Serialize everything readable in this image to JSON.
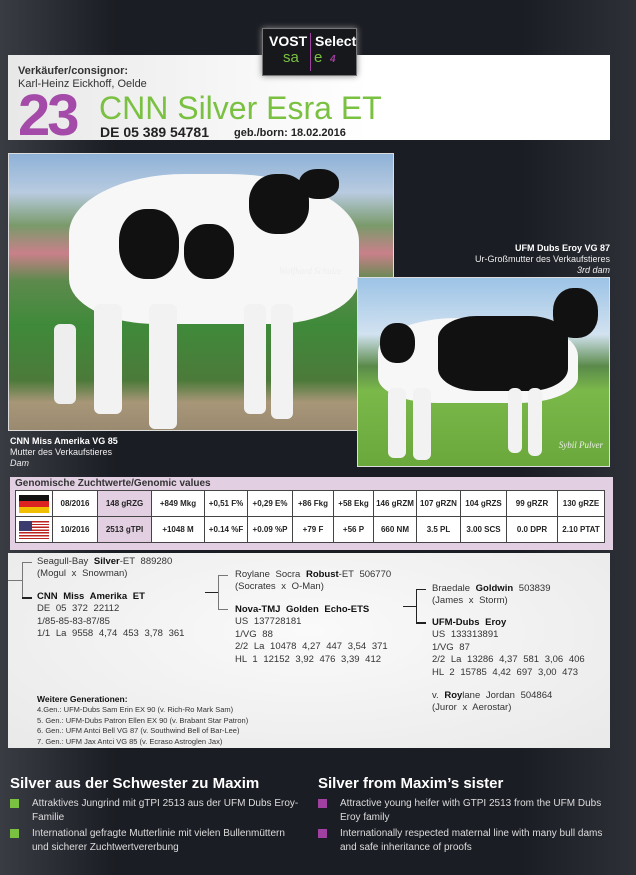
{
  "logo": {
    "line1a": "VOST",
    "line1b": "Select",
    "line2a": "sa",
    "line2b": "e",
    "line2c": "4"
  },
  "header": {
    "consignor_label": "Verkäufer/consignor:",
    "consignor": "Karl-Heinz Eickhoff, Oelde",
    "lot_number": "23",
    "animal_name": "CNN Silver Esra ET",
    "registration": "DE 05 389 54781",
    "born": "geb./born: 18.02.2016"
  },
  "photos": {
    "main_watermark": "Wolfhard Schulze",
    "second_watermark": "Sybil Pulver"
  },
  "captions": {
    "right": {
      "title": "UFM Dubs Eroy VG 87",
      "line1": "Ur-Großmutter des Verkaufstieres",
      "line2": "3rd dam"
    },
    "left": {
      "title": "CNN Miss Amerika VG 85",
      "line1": "Mutter des Verkaufstieres",
      "line2": "Dam"
    }
  },
  "genomic": {
    "title": "Genomische Zuchtwerte/Genomic values",
    "rows": [
      {
        "flag": "germany-flag",
        "cells": [
          "08/2016",
          "148 gRZG",
          "+849 Mkg",
          "+0,51 F%",
          "+0,29 E%",
          "+86 Fkg",
          "+58 Ekg",
          "146 gRZM",
          "107 gRZN",
          "104 gRZS",
          "99 gRZR",
          "130 gRZE"
        ]
      },
      {
        "flag": "usa-flag",
        "cells": [
          "10/2016",
          "2513 gTPI",
          "+1048 M",
          "+0.14 %F",
          "+0.09 %P",
          "+79 F",
          "+56 P",
          "660 NM",
          "3.5 PL",
          "3.00 SCS",
          "0.0 DPR",
          "2.10 PTAT"
        ]
      }
    ],
    "highlight_color": "#e2cfe2"
  },
  "pedigree": {
    "sire": {
      "pre": "Seagull-Bay ",
      "bold": "Silver",
      "post": "-ET 889280",
      "line2": "(Mogul x Snowman)"
    },
    "dam": {
      "name": "CNN Miss Amerika ET",
      "lines": [
        "DE 05 372 22112",
        "1/85-85-83-87/85",
        "1/1 La        9558  4,74   453  3,78   361"
      ]
    },
    "dam_sire": {
      "pre": "Roylane Socra ",
      "bold": "Robust",
      "post": "-ET 506770",
      "line2": "(Socrates x O-Man)"
    },
    "granddam": {
      "name": "Nova-TMJ Golden Echo-ETS",
      "lines": [
        "US 137728181",
        "1/VG 88",
        "2/2 La      10478  4,27   447  3,54   371",
        "HL 1         12152  3,92   476  3,39   412"
      ]
    },
    "gd_sire": {
      "pre": "Braedale ",
      "bold": "Goldwin",
      "post": " 503839",
      "line2": "(James x Storm)"
    },
    "ggdam": {
      "name": "UFM-Dubs Eroy",
      "lines": [
        "US 133313891",
        "1/VG 87",
        "2/2 La      13286  4,37   581  3,06   406",
        "HL 2         15785  4,42   697  3,00   473"
      ]
    },
    "ggd_sire": {
      "pre": "v. ",
      "bold": "Roy",
      "post": "lane Jordan 504864",
      "line2": "(Juror x Aerostar)"
    },
    "further": {
      "title": "Weitere Generationen:",
      "lines": [
        "4.Gen.:    UFM-Dubs Sam Erin EX 90 (v. Rich-Ro Mark Sam)",
        "5. Gen.:   UFM-Dubs Patron Ellen EX 90 (v. Brabant Star Patron)",
        "6. Gen.:   UFM Antci Bell VG 87 (v. Southwind Bell of Bar-Lee)",
        "7. Gen.:   UFM Jax Antci VG 85 (v. Ecraso Astroglen Jax)"
      ]
    }
  },
  "highlights": {
    "de": {
      "title": "Silver aus der Schwester zu Maxim",
      "bullets": [
        "Attraktives Jungrind mit gTPI 2513 aus der UFM Dubs Eroy-Familie",
        "International gefragte Mutterlinie mit vielen Bullenmüttern und sicherer Zuchtwertvererbung"
      ],
      "bullet_color": "#7ac142"
    },
    "en": {
      "title": "Silver from Maxim’s sister",
      "bullets": [
        "Attractive young heifer with GTPI 2513 from the UFM Dubs Eroy family",
        "Internationally respected maternal line with many bull dams and safe inheritance of proofs"
      ],
      "bullet_color": "#a040a0"
    }
  }
}
